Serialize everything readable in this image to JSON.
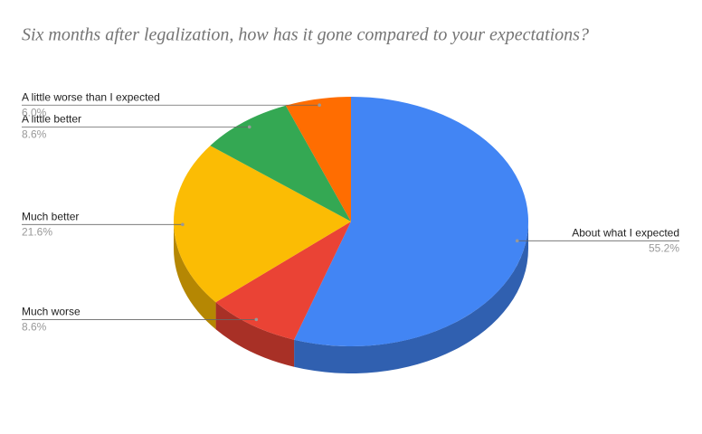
{
  "chart_data": {
    "type": "pie",
    "three_d": true,
    "title": "Six months after legalization, how has it gone compared to your expectations?",
    "categories": [
      "About what I expected",
      "Much worse",
      "Much better",
      "A little better",
      "A little worse than I expected"
    ],
    "values": [
      55.2,
      8.6,
      21.6,
      8.6,
      6.0
    ],
    "value_labels": [
      "55.2%",
      "8.6%",
      "21.6%",
      "8.6%",
      "6.0%"
    ],
    "colors": [
      "#4285f4",
      "#ea4335",
      "#fbbc04",
      "#34a853",
      "#ff6d01"
    ]
  }
}
